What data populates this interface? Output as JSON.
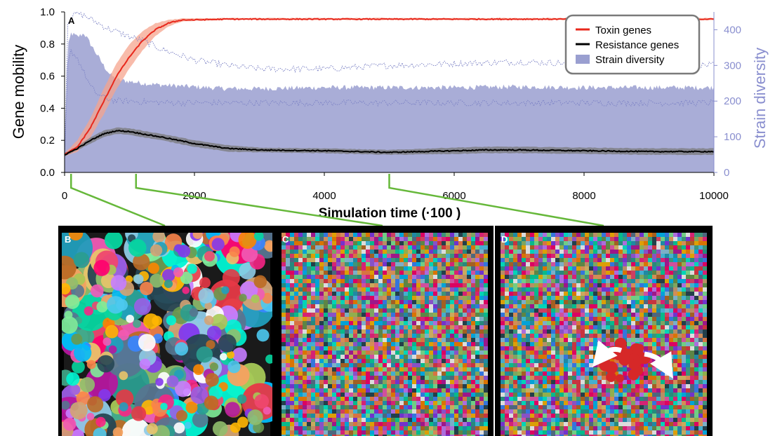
{
  "chart_data": {
    "type": "line",
    "panel_label": "A",
    "xlabel": "Simulation time (·100  )",
    "ylabel": "Gene mobility",
    "y2label": "Strain diversity",
    "xlim": [
      0,
      10000
    ],
    "ylim": [
      0,
      1.0
    ],
    "y2lim": [
      0,
      450
    ],
    "x_ticks": [
      0,
      2000,
      4000,
      6000,
      8000,
      10000
    ],
    "y_ticks": [
      0.0,
      0.2,
      0.4,
      0.6,
      0.8,
      1.0
    ],
    "y2_ticks": [
      0,
      100,
      200,
      300,
      400
    ],
    "x_tick_labels": [
      "0",
      "2000",
      "4000",
      "6000",
      "8000",
      "10000"
    ],
    "y_tick_labels": [
      "0.0",
      "0.2",
      "0.4",
      "0.6",
      "0.8",
      "1.0"
    ],
    "y2_tick_labels": [
      "0",
      "100",
      "200",
      "300",
      "400"
    ],
    "grid": false,
    "legend": {
      "placement": "top-right",
      "entries": [
        {
          "label": "Toxin genes",
          "color": "#e8281c",
          "kind": "line"
        },
        {
          "label": "Resistance genes",
          "color": "#000000",
          "kind": "line"
        },
        {
          "label": "Strain diversity",
          "color": "#9a9fd0",
          "kind": "patch"
        }
      ]
    },
    "series": [
      {
        "name": "Toxin genes",
        "axis": "left",
        "color": "#e8281c",
        "x": [
          0,
          200,
          400,
          600,
          800,
          1000,
          1200,
          1400,
          1600,
          1800,
          2000,
          2500,
          3000,
          3500,
          4000,
          5000,
          6000,
          7000,
          8000,
          9000,
          10000
        ],
        "values": [
          0.11,
          0.16,
          0.28,
          0.44,
          0.6,
          0.72,
          0.82,
          0.89,
          0.93,
          0.95,
          0.95,
          0.955,
          0.955,
          0.955,
          0.955,
          0.955,
          0.955,
          0.955,
          0.955,
          0.955,
          0.955
        ],
        "lower": [
          0.1,
          0.13,
          0.22,
          0.36,
          0.52,
          0.65,
          0.76,
          0.85,
          0.91,
          0.94,
          0.945,
          0.95,
          0.95,
          0.95,
          0.95,
          0.95,
          0.95,
          0.95,
          0.95,
          0.95,
          0.95
        ],
        "upper": [
          0.12,
          0.2,
          0.34,
          0.52,
          0.68,
          0.8,
          0.88,
          0.93,
          0.95,
          0.96,
          0.96,
          0.962,
          0.962,
          0.962,
          0.962,
          0.962,
          0.962,
          0.962,
          0.962,
          0.962,
          0.962
        ]
      },
      {
        "name": "Resistance genes",
        "axis": "left",
        "color": "#000000",
        "x": [
          0,
          200,
          400,
          600,
          800,
          1000,
          1200,
          1500,
          2000,
          2500,
          3000,
          4000,
          4500,
          5000,
          6000,
          6500,
          7000,
          8000,
          9000,
          10000
        ],
        "values": [
          0.11,
          0.15,
          0.2,
          0.24,
          0.26,
          0.255,
          0.24,
          0.22,
          0.18,
          0.15,
          0.14,
          0.135,
          0.13,
          0.125,
          0.135,
          0.14,
          0.14,
          0.135,
          0.13,
          0.13
        ],
        "lower": [
          0.1,
          0.14,
          0.18,
          0.22,
          0.24,
          0.235,
          0.22,
          0.2,
          0.16,
          0.13,
          0.125,
          0.12,
          0.115,
          0.11,
          0.115,
          0.12,
          0.12,
          0.115,
          0.11,
          0.11
        ],
        "upper": [
          0.12,
          0.16,
          0.22,
          0.26,
          0.28,
          0.275,
          0.26,
          0.24,
          0.2,
          0.17,
          0.155,
          0.15,
          0.145,
          0.14,
          0.155,
          0.16,
          0.16,
          0.155,
          0.15,
          0.15
        ]
      },
      {
        "name": "Strain diversity",
        "axis": "right",
        "color": "#9a9fd0",
        "x": [
          0,
          50,
          100,
          200,
          300,
          400,
          500,
          600,
          700,
          800,
          1000,
          1200,
          1500,
          2000,
          2500,
          3000,
          4000,
          5000,
          6000,
          7000,
          8000,
          9000,
          10000
        ],
        "values": [
          40,
          350,
          390,
          380,
          390,
          360,
          330,
          300,
          275,
          260,
          255,
          250,
          245,
          240,
          235,
          235,
          238,
          238,
          238,
          240,
          238,
          238,
          238
        ],
        "lower": [
          30,
          300,
          340,
          320,
          280,
          240,
          220,
          210,
          205,
          200,
          200,
          198,
          196,
          195,
          195,
          195,
          195,
          195,
          195,
          195,
          195,
          195,
          195
        ],
        "upper": [
          50,
          420,
          440,
          445,
          440,
          430,
          420,
          410,
          400,
          395,
          380,
          370,
          345,
          315,
          300,
          290,
          290,
          300,
          305,
          310,
          305,
          305,
          300
        ]
      }
    ]
  },
  "panels": [
    {
      "label": "B",
      "time": 100,
      "pattern": "large-colonies"
    },
    {
      "label": "C",
      "time": 1100,
      "pattern": "fine-mosaic"
    },
    {
      "label": "D",
      "time": 5000,
      "pattern": "fine-mosaic-with-arrows"
    }
  ],
  "colors": {
    "toxin": "#e8281c",
    "toxin_band": "#f5a48e",
    "resistance": "#000000",
    "resistance_band": "#7a7a7a",
    "diversity": "#9a9fd0",
    "diversity_line": "#7e84c6",
    "right_axis": "#8a8fcf",
    "connector": "#66b83a",
    "panel_frame": "#000000"
  }
}
